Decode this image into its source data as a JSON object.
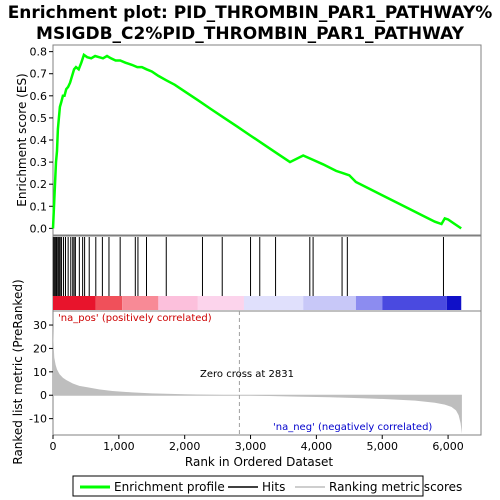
{
  "chart_data": {
    "type": "line",
    "title_line1": "Enrichment plot: PID_THROMBIN_PAR1_PATHWAY%",
    "title_line2": "MSIGDB_C2%PID_THROMBIN_PAR1_PATHWAY",
    "es_panel": {
      "ylabel": "Enrichment score (ES)",
      "ylim": [
        -0.03,
        0.83
      ],
      "yticks": [
        0.0,
        0.1,
        0.2,
        0.3,
        0.4,
        0.5,
        0.6,
        0.7,
        0.8
      ],
      "ytick_labels": [
        "0.0",
        "0.1",
        "0.2",
        "0.3",
        "0.4",
        "0.5",
        "0.6",
        "0.7",
        "0.8"
      ],
      "series": [
        {
          "name": "Enrichment profile",
          "color": "#00ff00",
          "x": [
            0,
            15,
            30,
            45,
            60,
            75,
            90,
            105,
            125,
            150,
            175,
            200,
            230,
            260,
            290,
            320,
            350,
            390,
            430,
            470,
            520,
            580,
            640,
            700,
            760,
            820,
            880,
            950,
            1020,
            1100,
            1200,
            1280,
            1350,
            1420,
            1500,
            1600,
            1720,
            1850,
            2000,
            2200,
            2400,
            2600,
            2800,
            3000,
            3200,
            3400,
            3600,
            3800,
            3950,
            4100,
            4300,
            4400,
            4500,
            4600,
            4800,
            5000,
            5200,
            5400,
            5600,
            5800,
            5900,
            5950,
            6000,
            6100,
            6200
          ],
          "y": [
            0.0,
            0.1,
            0.2,
            0.3,
            0.35,
            0.45,
            0.5,
            0.55,
            0.57,
            0.6,
            0.6,
            0.63,
            0.64,
            0.66,
            0.69,
            0.72,
            0.73,
            0.72,
            0.75,
            0.785,
            0.775,
            0.77,
            0.78,
            0.775,
            0.77,
            0.78,
            0.77,
            0.76,
            0.76,
            0.75,
            0.74,
            0.73,
            0.73,
            0.72,
            0.71,
            0.69,
            0.67,
            0.65,
            0.62,
            0.58,
            0.54,
            0.5,
            0.46,
            0.42,
            0.38,
            0.34,
            0.3,
            0.33,
            0.31,
            0.29,
            0.26,
            0.25,
            0.24,
            0.21,
            0.18,
            0.15,
            0.12,
            0.09,
            0.06,
            0.03,
            0.02,
            0.045,
            0.04,
            0.02,
            0.0
          ]
        }
      ]
    },
    "hits": [
      5,
      20,
      35,
      50,
      62,
      80,
      95,
      110,
      130,
      160,
      190,
      230,
      270,
      300,
      320,
      340,
      400,
      450,
      480,
      550,
      650,
      750,
      850,
      1020,
      1250,
      1290,
      1420,
      1720,
      2270,
      2570,
      3000,
      3140,
      3380,
      3900,
      3950,
      4390,
      4470,
      5930
    ],
    "rank_bar": {
      "segments": [
        {
          "from": 0,
          "to": 650,
          "color": "#e8142c"
        },
        {
          "from": 650,
          "to": 1050,
          "color": "#f0505a"
        },
        {
          "from": 1050,
          "to": 1600,
          "color": "#f88a96"
        },
        {
          "from": 1600,
          "to": 2200,
          "color": "#fcc0dc"
        },
        {
          "from": 2200,
          "to": 2900,
          "color": "#fcd4ec"
        },
        {
          "from": 2900,
          "to": 3800,
          "color": "#e0e0fc"
        },
        {
          "from": 3800,
          "to": 4600,
          "color": "#c8c8f8"
        },
        {
          "from": 4600,
          "to": 5000,
          "color": "#8c8cf0"
        },
        {
          "from": 5000,
          "to": 5980,
          "color": "#4a4ae0"
        },
        {
          "from": 5980,
          "to": 6200,
          "color": "#1010c8"
        }
      ]
    },
    "metric_panel": {
      "ylabel": "Ranked list metric (PreRanked)",
      "ylim": [
        -17,
        36
      ],
      "yticks": [
        -10,
        0,
        10,
        20,
        30
      ],
      "ytick_labels": [
        "-10",
        "0",
        "10",
        "20",
        "30"
      ],
      "fill_color": "#bebebe",
      "x": [
        0,
        10,
        20,
        40,
        60,
        100,
        150,
        200,
        300,
        400,
        500,
        700,
        900,
        1200,
        1500,
        2000,
        2500,
        2831,
        3200,
        3700,
        4200,
        4700,
        5100,
        5500,
        5800,
        5950,
        6050,
        6120,
        6160,
        6190,
        6210
      ],
      "y": [
        30,
        21,
        16,
        13,
        11,
        9,
        7.5,
        6.5,
        5,
        4,
        3.5,
        2.5,
        1.8,
        1.2,
        0.8,
        0.4,
        0.15,
        0,
        -0.3,
        -0.6,
        -0.9,
        -1.3,
        -1.7,
        -2.3,
        -3.2,
        -4,
        -5,
        -6.5,
        -8.5,
        -12,
        -16.5
      ]
    },
    "xaxis": {
      "xlabel": "Rank in Ordered Dataset",
      "xlim": [
        0,
        6500
      ],
      "xticks": [
        0,
        1000,
        2000,
        3000,
        4000,
        5000,
        6000
      ],
      "xtick_labels": [
        "0",
        "1,000",
        "2,000",
        "3,000",
        "4,000",
        "5,000",
        "6,000"
      ]
    },
    "zero_cross_x": 2831,
    "annotations": {
      "pos_label": "'na_pos' (positively correlated)",
      "neg_label": "'na_neg' (negatively correlated)",
      "zero_cross": "Zero cross at 2831",
      "pos_color": "#cc0000",
      "neg_color": "#0000cc"
    },
    "legend": {
      "items": [
        {
          "label": "Enrichment profile",
          "color": "#00ff00",
          "kind": "line-thick"
        },
        {
          "label": "Hits",
          "color": "#000000",
          "kind": "line"
        },
        {
          "label": "Ranking metric scores",
          "color": "#bebebe",
          "kind": "line"
        }
      ]
    }
  }
}
